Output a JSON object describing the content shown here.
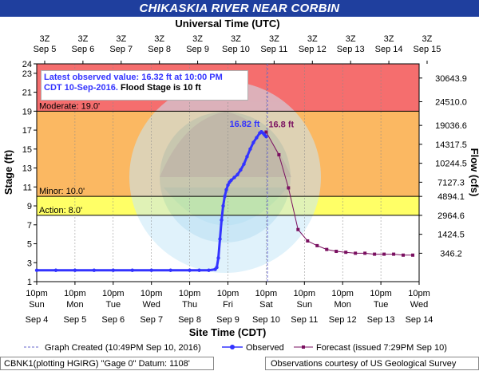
{
  "title": "CHIKASKIA RIVER NEAR CORBIN",
  "colors": {
    "title_bg": "#1f3f9e",
    "moderate": "#f56e6e",
    "minor": "#fbb862",
    "action": "#ffff66",
    "normal": "#ffffff",
    "observed": "#3333ff",
    "forecast": "#7a1060"
  },
  "latest": {
    "line1": "Latest observed value: 16.32 ft at 10:00 PM",
    "line2": "CDT 10-Sep-2016.",
    "line3": " Flood Stage is 10 ft"
  },
  "legend": {
    "graph_created": "Graph Created (10:49PM Sep 10, 2016)",
    "observed": "Observed",
    "forecast": "Forecast (issued 7:29PM Sep 10)"
  },
  "footer": {
    "left": "CBNK1(plotting HGIRG) \"Gage 0\" Datum: 1108'",
    "right": "Observations courtesy of US Geological Survey"
  },
  "chart_data": {
    "type": "line",
    "title": "CHIKASKIA RIVER NEAR CORBIN",
    "top_axis_label": "Universal Time (UTC)",
    "xlabel": "Site Time (CDT)",
    "ylabel": "Stage (ft)",
    "y2label": "Flow (cfs)",
    "x_range_hours": [
      0,
      240
    ],
    "ylim": [
      1,
      24
    ],
    "y_ticks": [
      1,
      3,
      5,
      7,
      9,
      11,
      13,
      15,
      17,
      19,
      21,
      23,
      24
    ],
    "y2_ticks": [
      {
        "stage": 4,
        "label": "346.2"
      },
      {
        "stage": 6,
        "label": "1424.5"
      },
      {
        "stage": 8,
        "label": "2964.6"
      },
      {
        "stage": 10,
        "label": "4894.1"
      },
      {
        "stage": 11.5,
        "label": "7127.3"
      },
      {
        "stage": 13.5,
        "label": "10244.5"
      },
      {
        "stage": 15.5,
        "label": "14317.5"
      },
      {
        "stage": 17.5,
        "label": "19036.6"
      },
      {
        "stage": 20,
        "label": "24510.0"
      },
      {
        "stage": 22.5,
        "label": "30643.9"
      }
    ],
    "bottom_ticks": [
      {
        "h": 0,
        "time": "10pm",
        "day": "Sun",
        "date": "Sep 4"
      },
      {
        "h": 24,
        "time": "10pm",
        "day": "Mon",
        "date": "Sep 5"
      },
      {
        "h": 48,
        "time": "10pm",
        "day": "Tue",
        "date": "Sep 6"
      },
      {
        "h": 72,
        "time": "10pm",
        "day": "Wed",
        "date": "Sep 7"
      },
      {
        "h": 96,
        "time": "10pm",
        "day": "Thu",
        "date": "Sep 8"
      },
      {
        "h": 120,
        "time": "10pm",
        "day": "Fri",
        "date": "Sep 9"
      },
      {
        "h": 144,
        "time": "10pm",
        "day": "Sat",
        "date": "Sep 10"
      },
      {
        "h": 168,
        "time": "10pm",
        "day": "Sun",
        "date": "Sep 11"
      },
      {
        "h": 192,
        "time": "10pm",
        "day": "Mon",
        "date": "Sep 12"
      },
      {
        "h": 216,
        "time": "10pm",
        "day": "Tue",
        "date": "Sep 13"
      },
      {
        "h": 240,
        "time": "10pm",
        "day": "Wed",
        "date": "Sep 14"
      }
    ],
    "top_ticks": [
      {
        "h": 5,
        "time": "3Z",
        "date": "Sep  5"
      },
      {
        "h": 29,
        "time": "3Z",
        "date": "Sep  6"
      },
      {
        "h": 53,
        "time": "3Z",
        "date": "Sep  7"
      },
      {
        "h": 77,
        "time": "3Z",
        "date": "Sep  8"
      },
      {
        "h": 101,
        "time": "3Z",
        "date": "Sep  9"
      },
      {
        "h": 125,
        "time": "3Z",
        "date": "Sep 10"
      },
      {
        "h": 149,
        "time": "3Z",
        "date": "Sep 11"
      },
      {
        "h": 173,
        "time": "3Z",
        "date": "Sep 12"
      },
      {
        "h": 197,
        "time": "3Z",
        "date": "Sep 13"
      },
      {
        "h": 221,
        "time": "3Z",
        "date": "Sep 14"
      },
      {
        "h": 245,
        "time": "3Z",
        "date": "Sep 15"
      }
    ],
    "flood_categories": [
      {
        "name": "Moderate",
        "label": "Moderate: 19.0'",
        "from": 19,
        "to": 24,
        "color": "#f56e6e"
      },
      {
        "name": "Minor",
        "label": "Minor: 10.0'",
        "from": 10,
        "to": 19,
        "color": "#fbb862"
      },
      {
        "name": "Action",
        "label": "Action: 8.0'",
        "from": 8,
        "to": 10,
        "color": "#ffff66"
      }
    ],
    "graph_created_h": 144.8,
    "observed": [
      [
        0,
        2.2
      ],
      [
        12,
        2.2
      ],
      [
        24,
        2.2
      ],
      [
        36,
        2.2
      ],
      [
        48,
        2.2
      ],
      [
        60,
        2.2
      ],
      [
        72,
        2.2
      ],
      [
        84,
        2.2
      ],
      [
        96,
        2.2
      ],
      [
        102,
        2.2
      ],
      [
        108,
        2.2
      ],
      [
        112,
        2.3
      ],
      [
        113,
        2.5
      ],
      [
        114,
        3.5
      ],
      [
        115,
        5.5
      ],
      [
        116,
        7.5
      ],
      [
        117,
        9.0
      ],
      [
        118,
        10.0
      ],
      [
        119,
        10.7
      ],
      [
        120,
        11.2
      ],
      [
        121,
        11.5
      ],
      [
        122,
        11.7
      ],
      [
        124,
        12.0
      ],
      [
        126,
        12.3
      ],
      [
        128,
        12.8
      ],
      [
        130,
        13.4
      ],
      [
        132,
        14.2
      ],
      [
        134,
        15.0
      ],
      [
        136,
        15.7
      ],
      [
        138,
        16.2
      ],
      [
        140,
        16.7
      ],
      [
        141,
        16.82
      ],
      [
        142,
        16.7
      ],
      [
        143,
        16.5
      ],
      [
        144,
        16.32
      ]
    ],
    "forecast": [
      [
        144,
        16.8
      ],
      [
        152,
        14.4
      ],
      [
        158,
        10.9
      ],
      [
        164,
        6.5
      ],
      [
        170,
        5.3
      ],
      [
        176,
        4.8
      ],
      [
        182,
        4.4
      ],
      [
        188,
        4.2
      ],
      [
        194,
        4.1
      ],
      [
        200,
        4.0
      ],
      [
        206,
        4.0
      ],
      [
        212,
        3.9
      ],
      [
        218,
        3.9
      ],
      [
        224,
        3.9
      ],
      [
        230,
        3.8
      ],
      [
        236,
        3.8
      ]
    ],
    "annotations": [
      {
        "text": "16.82 ft",
        "h": 141,
        "stage": 16.82,
        "series": "observed"
      },
      {
        "text": "16.8 ft",
        "h": 144,
        "stage": 16.8,
        "series": "forecast"
      }
    ]
  }
}
